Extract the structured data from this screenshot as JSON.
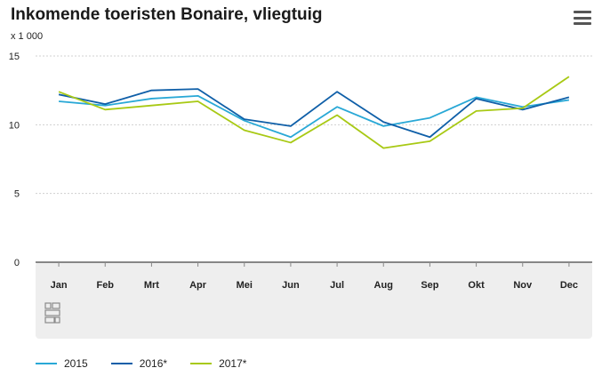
{
  "header": {
    "title": "Inkomende toeristen Bonaire, vliegtuig"
  },
  "menu_icon": "hamburger-menu-icon",
  "chart_data": {
    "type": "line",
    "unit_label": "x 1 000",
    "categories": [
      "Jan",
      "Feb",
      "Mrt",
      "Apr",
      "Mei",
      "Jun",
      "Jul",
      "Aug",
      "Sep",
      "Okt",
      "Nov",
      "Dec"
    ],
    "ylim": [
      0,
      15
    ],
    "yticks": [
      0,
      5,
      10,
      15
    ],
    "grid": true,
    "legend_position": "bottom-left",
    "series": [
      {
        "name": "2015",
        "color": "#29a8d6",
        "values": [
          11.7,
          11.4,
          11.9,
          12.1,
          10.3,
          9.1,
          11.3,
          9.9,
          10.5,
          12.0,
          11.3,
          11.8
        ]
      },
      {
        "name": "2016*",
        "color": "#0f5fa8",
        "values": [
          12.2,
          11.5,
          12.5,
          12.6,
          10.4,
          9.9,
          12.4,
          10.2,
          9.1,
          11.9,
          11.1,
          12.0
        ]
      },
      {
        "name": "2017*",
        "color": "#a8c914",
        "values": [
          12.4,
          11.1,
          11.4,
          11.7,
          9.6,
          8.7,
          10.7,
          8.3,
          8.8,
          11.0,
          11.2,
          13.5
        ]
      }
    ]
  }
}
